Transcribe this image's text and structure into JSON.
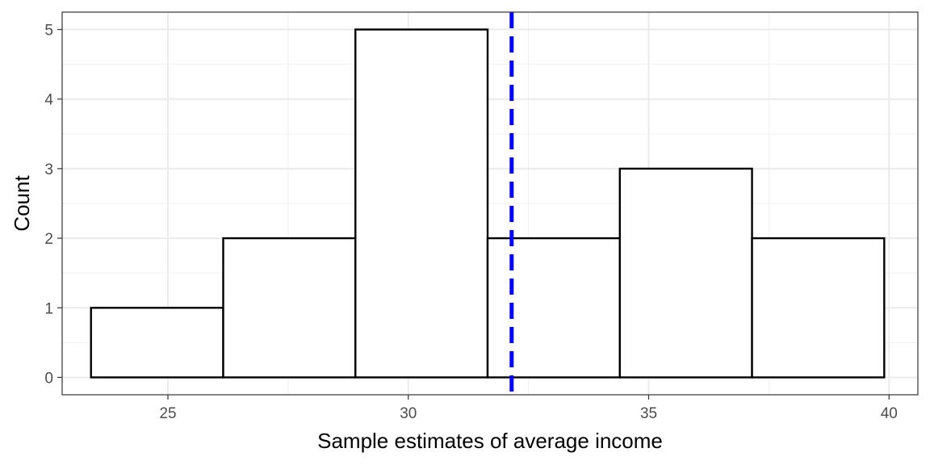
{
  "chart_data": {
    "type": "bar",
    "subtype": "histogram",
    "bins": [
      {
        "start": 23.4,
        "end": 26.15,
        "count": 1
      },
      {
        "start": 26.15,
        "end": 28.9,
        "count": 2
      },
      {
        "start": 28.9,
        "end": 31.65,
        "count": 5
      },
      {
        "start": 31.65,
        "end": 34.4,
        "count": 2
      },
      {
        "start": 34.4,
        "end": 37.15,
        "count": 3
      },
      {
        "start": 37.15,
        "end": 39.9,
        "count": 2
      }
    ],
    "vline": {
      "x": 32.15,
      "color": "#0000ff",
      "style": "dashed"
    },
    "xlabel": "Sample  estimates of average income",
    "ylabel": "Count",
    "xlim": [
      22.8,
      40.6
    ],
    "ylim": [
      -0.25,
      5.25
    ],
    "x_ticks": [
      25,
      30,
      35,
      40
    ],
    "y_ticks": [
      0,
      1,
      2,
      3,
      4,
      5
    ],
    "grid": true,
    "bar_fill": "#ffffff",
    "bar_outline": "#000000"
  }
}
